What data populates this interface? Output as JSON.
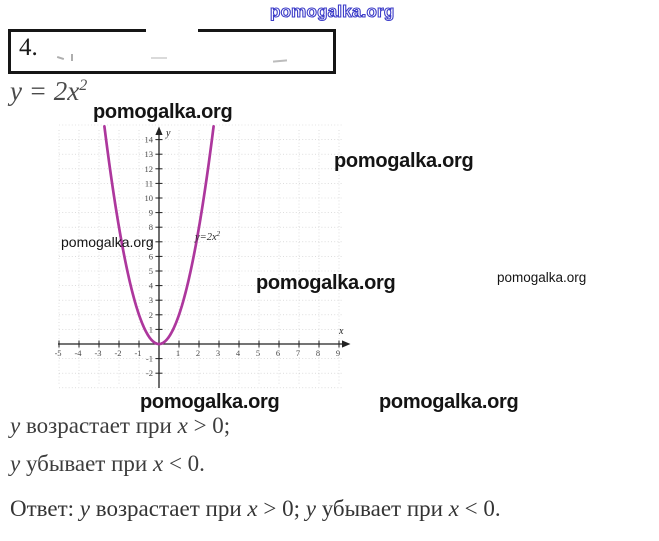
{
  "page": {
    "background": "#ffffff"
  },
  "watermark": {
    "text": "pomogalka.org",
    "outline_color": "#3c3cc8",
    "text_color": "#141414"
  },
  "task_box": {
    "number": "4."
  },
  "equation": {
    "lhs": "y",
    "eq": " = ",
    "coef": "2",
    "var": "x",
    "exp": "2"
  },
  "chart_data": {
    "type": "line",
    "title": "",
    "equation": "y = 2x^2",
    "coefficient": 2,
    "curve_label_base": "y=2x",
    "curve_label_exp": "2",
    "xlabel": "x",
    "ylabel": "y",
    "x_ticks": [
      -5,
      -4,
      -3,
      -2,
      -1,
      1,
      2,
      3,
      4,
      5,
      6,
      7,
      8,
      9
    ],
    "y_ticks": [
      -2,
      -1,
      1,
      2,
      3,
      4,
      5,
      6,
      7,
      8,
      9,
      10,
      11,
      12,
      13,
      14
    ],
    "xlim": [
      -5.2,
      9.4
    ],
    "ylim": [
      -3.2,
      15.2
    ],
    "x_range_plotted": [
      -2.73,
      2.73
    ],
    "key_points": [
      [
        -2,
        8
      ],
      [
        -1.5,
        4.5
      ],
      [
        -1,
        2
      ],
      [
        -0.5,
        0.5
      ],
      [
        0,
        0
      ],
      [
        0.5,
        0.5
      ],
      [
        1,
        2
      ],
      [
        1.5,
        4.5
      ],
      [
        2,
        8
      ]
    ],
    "grid": true,
    "grid_color": "#c9c9c9",
    "axis_color": "#222222",
    "tick_label_color": "#4a4a4a",
    "curve_color": "#ad379d"
  },
  "lines": {
    "line1": [
      {
        "t": "y",
        "i": 1
      },
      {
        "t": " возрастает при ",
        "i": 0
      },
      {
        "t": "x",
        "i": 1
      },
      {
        "t": " > 0;",
        "i": 0
      }
    ],
    "line2": [
      {
        "t": "y",
        "i": 1
      },
      {
        "t": " убывает при ",
        "i": 0
      },
      {
        "t": "x",
        "i": 1
      },
      {
        "t": " < 0.",
        "i": 0
      }
    ],
    "answer": [
      {
        "t": "Ответ: ",
        "i": 0
      },
      {
        "t": "y",
        "i": 1
      },
      {
        "t": " возрастает при ",
        "i": 0
      },
      {
        "t": "x",
        "i": 1
      },
      {
        "t": " > 0;  ",
        "i": 0
      },
      {
        "t": "y",
        "i": 1
      },
      {
        "t": " убывает при ",
        "i": 0
      },
      {
        "t": "x",
        "i": 1
      },
      {
        "t": " < 0.",
        "i": 0
      }
    ]
  }
}
